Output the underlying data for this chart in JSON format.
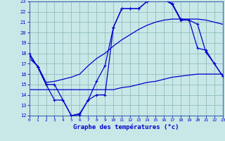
{
  "title": "Graphe des températures (°c)",
  "bg_color": "#c8e8e8",
  "grid_color": "#90bcbc",
  "line_color": "#0000cc",
  "spine_color": "#4466aa",
  "xlim": [
    0,
    23
  ],
  "ylim": [
    12,
    23
  ],
  "xticks": [
    0,
    1,
    2,
    3,
    4,
    5,
    6,
    7,
    8,
    9,
    10,
    11,
    12,
    13,
    14,
    15,
    16,
    17,
    18,
    19,
    20,
    21,
    22,
    23
  ],
  "yticks": [
    12,
    13,
    14,
    15,
    16,
    17,
    18,
    19,
    20,
    21,
    22,
    23
  ],
  "curve1_x": [
    0,
    1,
    2,
    3,
    4,
    5,
    6,
    7,
    8,
    9,
    10,
    11,
    12,
    13,
    14,
    15,
    16,
    17,
    18,
    19,
    20,
    21,
    22,
    23
  ],
  "curve1_y": [
    18.0,
    16.7,
    15.0,
    15.0,
    13.5,
    12.0,
    12.1,
    13.5,
    15.3,
    16.8,
    20.5,
    22.3,
    22.3,
    22.3,
    23.0,
    23.2,
    23.2,
    22.8,
    21.3,
    21.2,
    18.5,
    18.3,
    17.0,
    15.8
  ],
  "curve2_x": [
    0,
    1,
    2,
    3,
    4,
    5,
    6,
    7,
    8,
    9,
    10,
    11,
    12,
    13,
    14,
    15,
    16,
    17,
    18,
    19,
    20,
    21,
    22,
    23
  ],
  "curve2_y": [
    17.5,
    16.8,
    15.2,
    15.3,
    15.5,
    15.7,
    16.0,
    16.8,
    17.5,
    18.0,
    18.7,
    19.3,
    19.8,
    20.3,
    20.7,
    21.0,
    21.2,
    21.3,
    21.3,
    21.3,
    21.3,
    21.2,
    21.0,
    20.8
  ],
  "curve3_x": [
    0,
    1,
    2,
    3,
    4,
    5,
    6,
    7,
    8,
    9,
    10,
    11,
    12,
    13,
    14,
    15,
    16,
    17,
    18,
    19,
    20,
    21,
    22,
    23
  ],
  "curve3_y": [
    14.5,
    14.5,
    14.5,
    14.5,
    14.5,
    14.5,
    14.5,
    14.5,
    14.5,
    14.5,
    14.5,
    14.7,
    14.8,
    15.0,
    15.2,
    15.3,
    15.5,
    15.7,
    15.8,
    15.9,
    16.0,
    16.0,
    16.0,
    16.0
  ],
  "curve4_x": [
    0,
    1,
    2,
    3,
    4,
    5,
    6,
    7,
    8,
    9,
    10,
    11,
    12,
    13,
    14,
    15,
    16,
    17,
    18,
    19,
    20,
    21,
    22,
    23
  ],
  "curve4_y": [
    17.8,
    16.7,
    15.0,
    13.5,
    13.5,
    12.0,
    12.2,
    13.5,
    14.0,
    14.0,
    20.5,
    22.3,
    22.3,
    22.3,
    23.0,
    23.2,
    23.2,
    22.7,
    21.2,
    21.2,
    20.8,
    18.1,
    17.0,
    15.8
  ]
}
